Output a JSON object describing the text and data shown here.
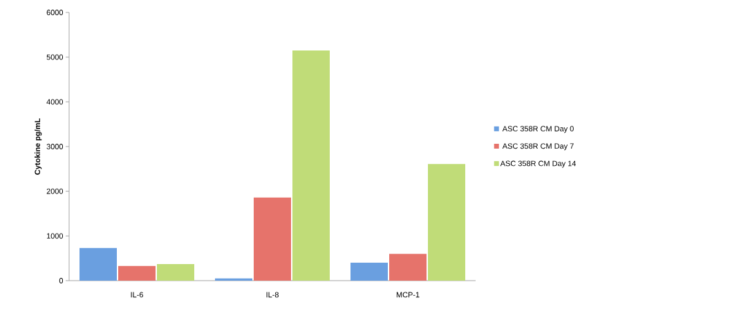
{
  "chart_data": {
    "type": "bar",
    "ylabel": "Cytokine pg/mL",
    "categories": [
      "IL-6",
      "IL-8",
      "MCP-1"
    ],
    "series": [
      {
        "name": "ASC 358R CM Day 0",
        "color": "#6a9fe0",
        "values": [
          730,
          50,
          400
        ]
      },
      {
        "name": "ASC 358R CM Day 7",
        "color": "#e6736b",
        "values": [
          330,
          1860,
          600
        ]
      },
      {
        "name": "ASC 358R CM Day 14",
        "color": "#c0dc78",
        "values": [
          370,
          5150,
          2610
        ]
      }
    ],
    "ylim": [
      0,
      6000
    ],
    "yticks": [
      0,
      1000,
      2000,
      3000,
      4000,
      5000,
      6000
    ],
    "grid": false,
    "legend": "right"
  }
}
